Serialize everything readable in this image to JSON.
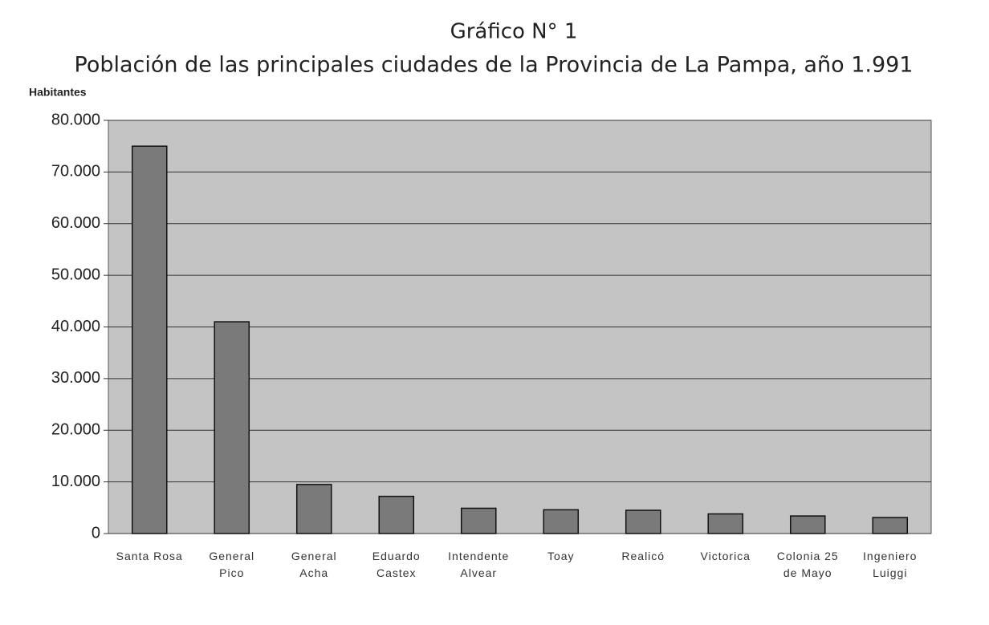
{
  "chart_data": {
    "type": "bar",
    "title": "Gráfico N° 1",
    "subtitle": "Población de las principales ciudades de la Provincia de La Pampa, año 1.991",
    "y_label": "Habitantes",
    "categories": [
      "Santa Rosa",
      "General Pico",
      "General Acha",
      "Eduardo Castex",
      "Intendente Alvear",
      "Toay",
      "Realicó",
      "Victorica",
      "Colonia 25 de Mayo",
      "Ingeniero Luiggi"
    ],
    "values": [
      75000,
      41000,
      9500,
      7200,
      4900,
      4600,
      4500,
      3800,
      3400,
      3100
    ],
    "color": "#7a7a7a",
    "ylim": [
      0,
      80000
    ],
    "yticks": [
      0,
      {
        "value": 10000,
        "label": "10.000"
      },
      {
        "value": 20000,
        "label": "20.000"
      },
      {
        "value": 30000,
        "label": "30.000"
      },
      {
        "value": 40000,
        "label": "40.000"
      },
      {
        "value": 50000,
        "label": "50.000"
      },
      {
        "value": 60000,
        "label": "60.000"
      },
      {
        "value": 70000,
        "label": "70.000"
      },
      {
        "value": 80000,
        "label": "80.000"
      }
    ],
    "grid": true
  }
}
